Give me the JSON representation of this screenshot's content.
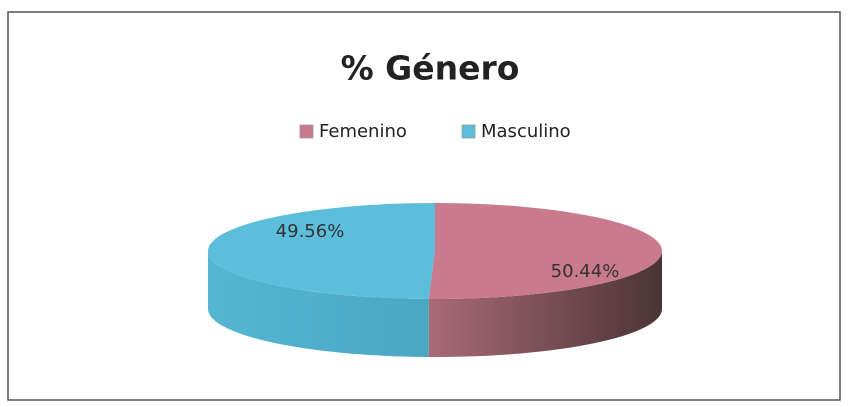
{
  "chart_data": {
    "type": "pie",
    "title": "% Género",
    "categories": [
      "Femenino",
      "Masculino"
    ],
    "values": [
      50.44,
      49.56
    ],
    "value_labels": [
      "50.44%",
      "49.56%"
    ],
    "colors": [
      "#c97a8d",
      "#5cbedb"
    ],
    "legend": "top"
  }
}
